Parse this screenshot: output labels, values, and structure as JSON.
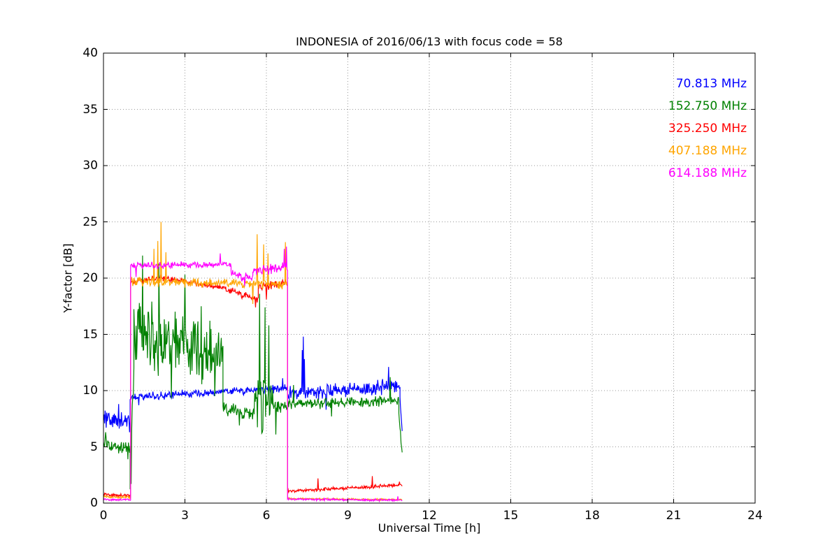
{
  "figure": {
    "background": "#ffffff",
    "frame_color": "#000000",
    "grid_style": "dotted"
  },
  "chart_data": {
    "type": "line",
    "title": "INDONESIA of 2016/06/13 with focus code = 58",
    "xlabel": "Universal Time [h]",
    "ylabel": "Y-factor [dB]",
    "xlim": [
      0,
      24
    ],
    "ylim": [
      0,
      40
    ],
    "xticks": [
      0,
      3,
      6,
      9,
      12,
      15,
      18,
      21,
      24
    ],
    "yticks": [
      0,
      5,
      10,
      15,
      20,
      25,
      30,
      35,
      40
    ],
    "grid": true,
    "legend_position": "upper right",
    "series": [
      {
        "name": "70.813 MHz",
        "color": "#0000ff",
        "segments": [
          {
            "x0": 0.0,
            "x1": 0.98,
            "y0": 7.6,
            "y1": 7.1,
            "noise": 0.85,
            "spikes": [
              [
                0.1,
                6.7
              ],
              [
                0.55,
                8.8
              ],
              [
                0.95,
                6.3
              ]
            ]
          },
          {
            "x0": 0.98,
            "x1": 6.78,
            "y0": 9.4,
            "y1": 10.2,
            "noise": 0.42,
            "spikes": [
              [
                1.3,
                8.7
              ],
              [
                6.6,
                11.1
              ]
            ]
          },
          {
            "x0": 6.78,
            "x1": 10.92,
            "y0": 9.7,
            "y1": 10.4,
            "noise": 0.75,
            "spikes": [
              [
                7.32,
                13.6
              ],
              [
                7.36,
                14.8
              ],
              [
                7.4,
                12.8
              ],
              [
                8.2,
                8.3
              ],
              [
                10.5,
                12.1
              ]
            ]
          },
          {
            "x0": 10.92,
            "x1": 11.0,
            "y0": 9.3,
            "y1": 6.3,
            "noise": 0.3,
            "spikes": []
          }
        ]
      },
      {
        "name": "152.750 MHz",
        "color": "#008000",
        "segments": [
          {
            "x0": 0.0,
            "x1": 0.98,
            "y0": 5.2,
            "y1": 4.8,
            "noise": 0.65,
            "spikes": [
              [
                0.08,
                6.3
              ],
              [
                0.9,
                3.9
              ]
            ]
          },
          {
            "x0": 0.98,
            "x1": 1.12,
            "y0": 2.2,
            "y1": 12.0,
            "noise": 1.2,
            "spikes": [
              [
                1.02,
                1.7
              ]
            ]
          },
          {
            "x0": 1.12,
            "x1": 4.4,
            "y0": 15.0,
            "y1": 13.0,
            "noise": 3.6,
            "spikes": [
              [
                1.45,
                22.0
              ],
              [
                2.05,
                21.3
              ],
              [
                2.5,
                9.3
              ],
              [
                3.0,
                20.3
              ],
              [
                3.6,
                17.5
              ],
              [
                4.1,
                9.5
              ]
            ]
          },
          {
            "x0": 4.4,
            "x1": 5.55,
            "y0": 8.3,
            "y1": 7.9,
            "noise": 0.8,
            "spikes": [
              [
                5.0,
                6.9
              ]
            ]
          },
          {
            "x0": 5.55,
            "x1": 6.25,
            "y0": 9.0,
            "y1": 8.8,
            "noise": 3.2,
            "spikes": [
              [
                5.75,
                18.6
              ],
              [
                5.85,
                6.3
              ],
              [
                5.95,
                17.4
              ],
              [
                6.1,
                15.8
              ]
            ]
          },
          {
            "x0": 6.25,
            "x1": 6.78,
            "y0": 8.6,
            "y1": 8.6,
            "noise": 0.7,
            "spikes": [
              [
                6.35,
                6.1
              ]
            ]
          },
          {
            "x0": 6.78,
            "x1": 10.88,
            "y0": 8.8,
            "y1": 9.1,
            "noise": 0.55,
            "spikes": [
              [
                7.0,
                10.5
              ],
              [
                8.4,
                7.7
              ],
              [
                10.55,
                11.2
              ]
            ]
          },
          {
            "x0": 10.88,
            "x1": 11.0,
            "y0": 7.8,
            "y1": 4.4,
            "noise": 0.4,
            "spikes": []
          }
        ]
      },
      {
        "name": "325.250 MHz",
        "color": "#ff0000",
        "segments": [
          {
            "x0": 0.0,
            "x1": 1.0,
            "y0": 0.75,
            "y1": 0.65,
            "noise": 0.15,
            "spikes": []
          },
          {
            "x0": 1.0,
            "x1": 2.2,
            "y0": 19.6,
            "y1": 20.1,
            "noise": 0.3,
            "spikes": []
          },
          {
            "x0": 2.2,
            "x1": 4.2,
            "y0": 20.0,
            "y1": 19.2,
            "noise": 0.3,
            "spikes": []
          },
          {
            "x0": 4.2,
            "x1": 5.7,
            "y0": 19.2,
            "y1": 18.1,
            "noise": 0.4,
            "spikes": [
              [
                5.6,
                17.4
              ]
            ]
          },
          {
            "x0": 5.7,
            "x1": 6.78,
            "y0": 19.2,
            "y1": 19.6,
            "noise": 0.4,
            "spikes": [
              [
                6.0,
                18.1
              ]
            ]
          },
          {
            "x0": 6.78,
            "x1": 11.0,
            "y0": 1.05,
            "y1": 1.6,
            "noise": 0.18,
            "spikes": [
              [
                7.9,
                2.2
              ],
              [
                9.9,
                2.4
              ],
              [
                10.9,
                1.9
              ]
            ]
          }
        ]
      },
      {
        "name": "407.188 MHz",
        "color": "#ffa500",
        "segments": [
          {
            "x0": 0.0,
            "x1": 1.0,
            "y0": 0.55,
            "y1": 0.5,
            "noise": 0.12,
            "spikes": []
          },
          {
            "x0": 1.0,
            "x1": 6.78,
            "y0": 19.7,
            "y1": 19.4,
            "noise": 0.5,
            "spikes": [
              [
                1.85,
                22.6
              ],
              [
                2.0,
                23.3
              ],
              [
                2.12,
                25.0
              ],
              [
                2.3,
                22.3
              ],
              [
                5.5,
                17.7
              ],
              [
                5.65,
                23.9
              ],
              [
                5.9,
                23.0
              ],
              [
                6.05,
                22.2
              ],
              [
                6.7,
                23.2
              ]
            ]
          },
          {
            "x0": 6.78,
            "x1": 11.0,
            "y0": 0.4,
            "y1": 0.3,
            "noise": 0.1,
            "spikes": []
          }
        ]
      },
      {
        "name": "614.188 MHz",
        "color": "#ff00ff",
        "segments": [
          {
            "x0": 0.0,
            "x1": 1.0,
            "y0": 0.3,
            "y1": 0.3,
            "noise": 0.1,
            "spikes": []
          },
          {
            "x0": 1.0,
            "x1": 4.7,
            "y0": 21.1,
            "y1": 21.2,
            "noise": 0.35,
            "spikes": [
              [
                1.2,
                20.1
              ],
              [
                4.3,
                22.2
              ]
            ]
          },
          {
            "x0": 4.7,
            "x1": 5.5,
            "y0": 20.3,
            "y1": 20.0,
            "noise": 0.5,
            "spikes": [
              [
                5.2,
                19.3
              ]
            ]
          },
          {
            "x0": 5.5,
            "x1": 6.78,
            "y0": 20.6,
            "y1": 21.0,
            "noise": 0.5,
            "spikes": [
              [
                6.65,
                22.6
              ],
              [
                6.74,
                22.8
              ]
            ]
          },
          {
            "x0": 6.78,
            "x1": 11.0,
            "y0": 0.35,
            "y1": 0.25,
            "noise": 0.12,
            "spikes": [
              [
                10.85,
                0.6
              ]
            ]
          }
        ]
      }
    ]
  }
}
